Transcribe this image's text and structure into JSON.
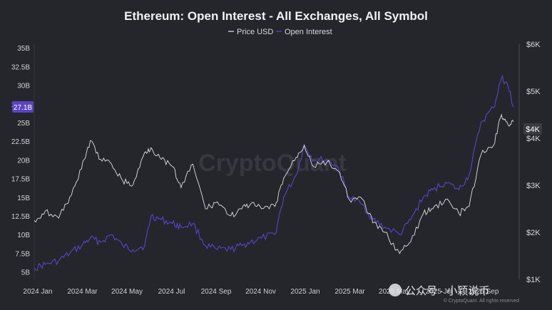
{
  "chart_data": {
    "type": "line",
    "title": "Ethereum: Open Interest - All Exchanges, All Symbol",
    "legend": {
      "placement": "top-center",
      "entries": [
        "Price USD",
        "Open Interest"
      ]
    },
    "colors": {
      "background": "#25252c",
      "price": "#e9e9ee",
      "open_interest": "#5b43c8",
      "badge": "#5b43c8"
    },
    "x_ticks": [
      "2024 Jan",
      "2024 Mar",
      "2024 May",
      "2024 Jul",
      "2024 Sep",
      "2024 Nov",
      "2025 Jan",
      "2025 Mar",
      "2025 May",
      "2025 Jul",
      "2025 Sep"
    ],
    "x_range": [
      "2024-01-01",
      "2025-09-01"
    ],
    "y_left": {
      "unit": "B",
      "range": [
        4,
        35.5
      ],
      "ticks": [
        5,
        7.5,
        10,
        12.5,
        15,
        17.5,
        20,
        22.5,
        25,
        27.5,
        30,
        32.5,
        35
      ],
      "tick_labels": [
        "5B",
        "7.5B",
        "10B",
        "12.5B",
        "15B",
        "17.5B",
        "20B",
        "22.5B",
        "25B",
        "27.5B",
        "30B",
        "32.5B",
        "35B"
      ]
    },
    "y_right": {
      "range": [
        1000,
        6000
      ],
      "ticks": [
        1000,
        2000,
        3000,
        4000,
        5000,
        6000
      ],
      "tick_labels": [
        "$1K",
        "$2K",
        "$3K",
        "$4K",
        "$5K",
        "$6K"
      ]
    },
    "current": {
      "open_interest_label": "27.1B",
      "price_label": "$4K"
    },
    "series": [
      {
        "name": "Price USD",
        "axis": "right",
        "x": [
          "2024-01-01",
          "2024-01-15",
          "2024-02-01",
          "2024-02-15",
          "2024-03-01",
          "2024-03-12",
          "2024-03-25",
          "2024-04-08",
          "2024-04-22",
          "2024-05-05",
          "2024-05-20",
          "2024-05-28",
          "2024-06-10",
          "2024-06-24",
          "2024-07-05",
          "2024-07-20",
          "2024-08-05",
          "2024-08-20",
          "2024-09-06",
          "2024-09-20",
          "2024-10-01",
          "2024-10-15",
          "2024-11-01",
          "2024-11-12",
          "2024-11-28",
          "2024-12-08",
          "2024-12-20",
          "2025-01-06",
          "2025-01-20",
          "2025-02-03",
          "2025-02-20",
          "2025-03-05",
          "2025-03-20",
          "2025-04-08",
          "2025-04-22",
          "2025-05-08",
          "2025-05-20",
          "2025-06-05",
          "2025-06-22",
          "2025-07-05",
          "2025-07-20",
          "2025-08-05",
          "2025-08-15",
          "2025-08-23",
          "2025-08-30"
        ],
        "y": [
          2250,
          2450,
          2300,
          2750,
          3350,
          3950,
          3550,
          3450,
          3100,
          3000,
          3700,
          3800,
          3550,
          3400,
          2950,
          3450,
          2500,
          2650,
          2350,
          2500,
          2600,
          2500,
          2550,
          3150,
          3600,
          3850,
          3400,
          3500,
          3300,
          2700,
          2700,
          2200,
          2000,
          1550,
          1800,
          2400,
          2500,
          2700,
          2400,
          2550,
          3650,
          3850,
          4500,
          4300,
          4350
        ]
      },
      {
        "name": "Open Interest",
        "axis": "left",
        "x": [
          "2024-01-01",
          "2024-01-15",
          "2024-02-01",
          "2024-02-15",
          "2024-03-01",
          "2024-03-12",
          "2024-03-25",
          "2024-04-08",
          "2024-04-22",
          "2024-05-05",
          "2024-05-20",
          "2024-05-28",
          "2024-06-10",
          "2024-06-24",
          "2024-07-05",
          "2024-07-20",
          "2024-08-05",
          "2024-08-20",
          "2024-09-06",
          "2024-09-20",
          "2024-10-01",
          "2024-10-15",
          "2024-11-01",
          "2024-11-12",
          "2024-11-28",
          "2024-12-08",
          "2024-12-20",
          "2025-01-06",
          "2025-01-20",
          "2025-02-03",
          "2025-02-20",
          "2025-03-05",
          "2025-03-20",
          "2025-04-08",
          "2025-04-22",
          "2025-05-08",
          "2025-05-20",
          "2025-06-05",
          "2025-06-22",
          "2025-07-05",
          "2025-07-20",
          "2025-08-05",
          "2025-08-15",
          "2025-08-23",
          "2025-08-30"
        ],
        "y": [
          5.5,
          6,
          6.5,
          7.5,
          8.5,
          9.5,
          9,
          10,
          8.5,
          8,
          8.5,
          12.5,
          12,
          11.5,
          11,
          11.5,
          8.5,
          8,
          8,
          8.5,
          9,
          9.5,
          10,
          15,
          18,
          22,
          20,
          20,
          19,
          15,
          14,
          12,
          11,
          10,
          12,
          15,
          16,
          17,
          16,
          18,
          25,
          27,
          31,
          30,
          27.1
        ]
      }
    ],
    "watermark": "CryptoQuant",
    "copyright": "© CryptoQuant. All rights reserved",
    "overlay_caption": "公众号 · 小颖说币"
  }
}
